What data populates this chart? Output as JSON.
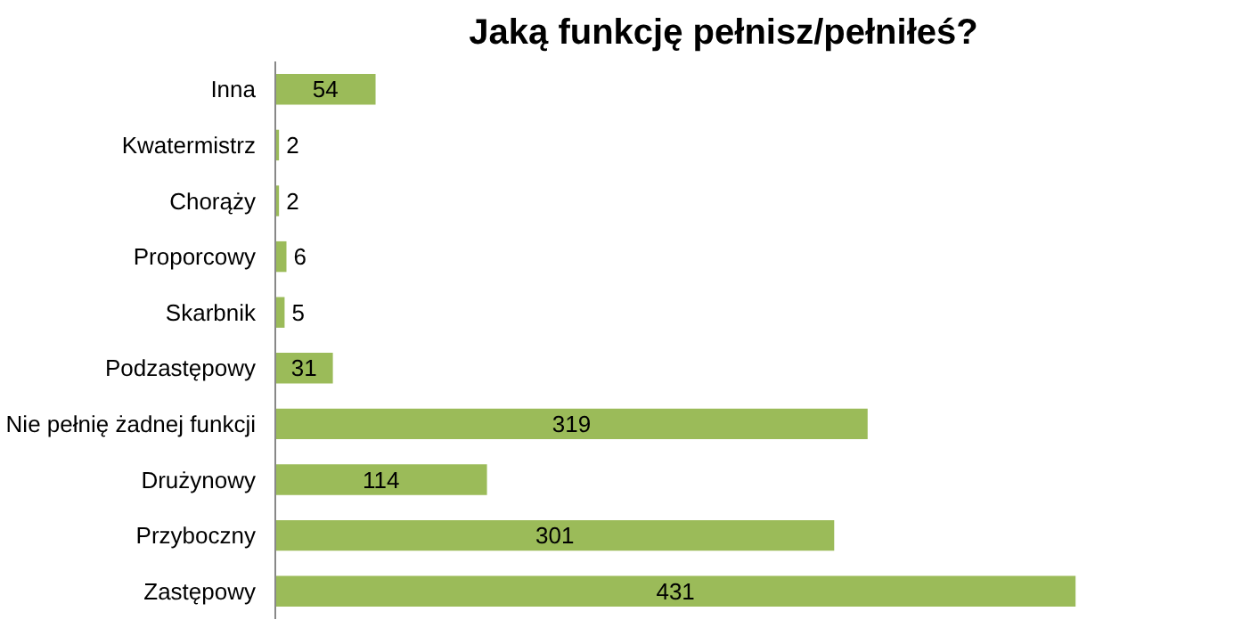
{
  "chart_data": {
    "type": "bar",
    "orientation": "horizontal",
    "title": "Jaką funkcję pełnisz/pełniłeś?",
    "categories": [
      "Inna",
      "Kwatermistrz",
      "Chorąży",
      "Proporcowy",
      "Skarbnik",
      "Podzastępowy",
      "Nie pełnię żadnej funkcji",
      "Drużynowy",
      "Przyboczny",
      "Zastępowy"
    ],
    "values": [
      54,
      2,
      2,
      6,
      5,
      31,
      319,
      114,
      301,
      431
    ],
    "color": "#9bbb59",
    "data_labels": true
  }
}
